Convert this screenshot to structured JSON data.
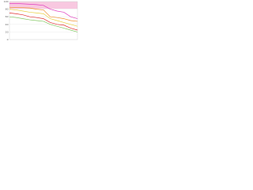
{
  "chart_data": {
    "type": "line",
    "x": [
      0,
      1,
      2,
      3,
      4,
      5,
      6,
      7,
      8,
      9,
      10
    ],
    "xlim": [
      0,
      10
    ],
    "ylim": [
      0,
      100
    ],
    "yticks": [
      0,
      20,
      40,
      60,
      80,
      100
    ],
    "grid": true,
    "series": [
      {
        "color": "#e040c0",
        "values": [
          95,
          95,
          94,
          93,
          92,
          90,
          80,
          75,
          72,
          60,
          55
        ]
      },
      {
        "color": "#f0902a",
        "values": [
          85,
          84,
          84,
          83,
          80,
          78,
          60,
          58,
          55,
          50,
          48
        ]
      },
      {
        "color": "#e8d040",
        "values": [
          80,
          78,
          75,
          72,
          70,
          68,
          55,
          50,
          45,
          40,
          35
        ]
      },
      {
        "color": "#e03030",
        "values": [
          70,
          68,
          65,
          60,
          58,
          55,
          45,
          40,
          38,
          30,
          25
        ]
      },
      {
        "color": "#80c860",
        "values": [
          60,
          58,
          55,
          52,
          50,
          48,
          40,
          35,
          30,
          25,
          20
        ]
      }
    ]
  }
}
